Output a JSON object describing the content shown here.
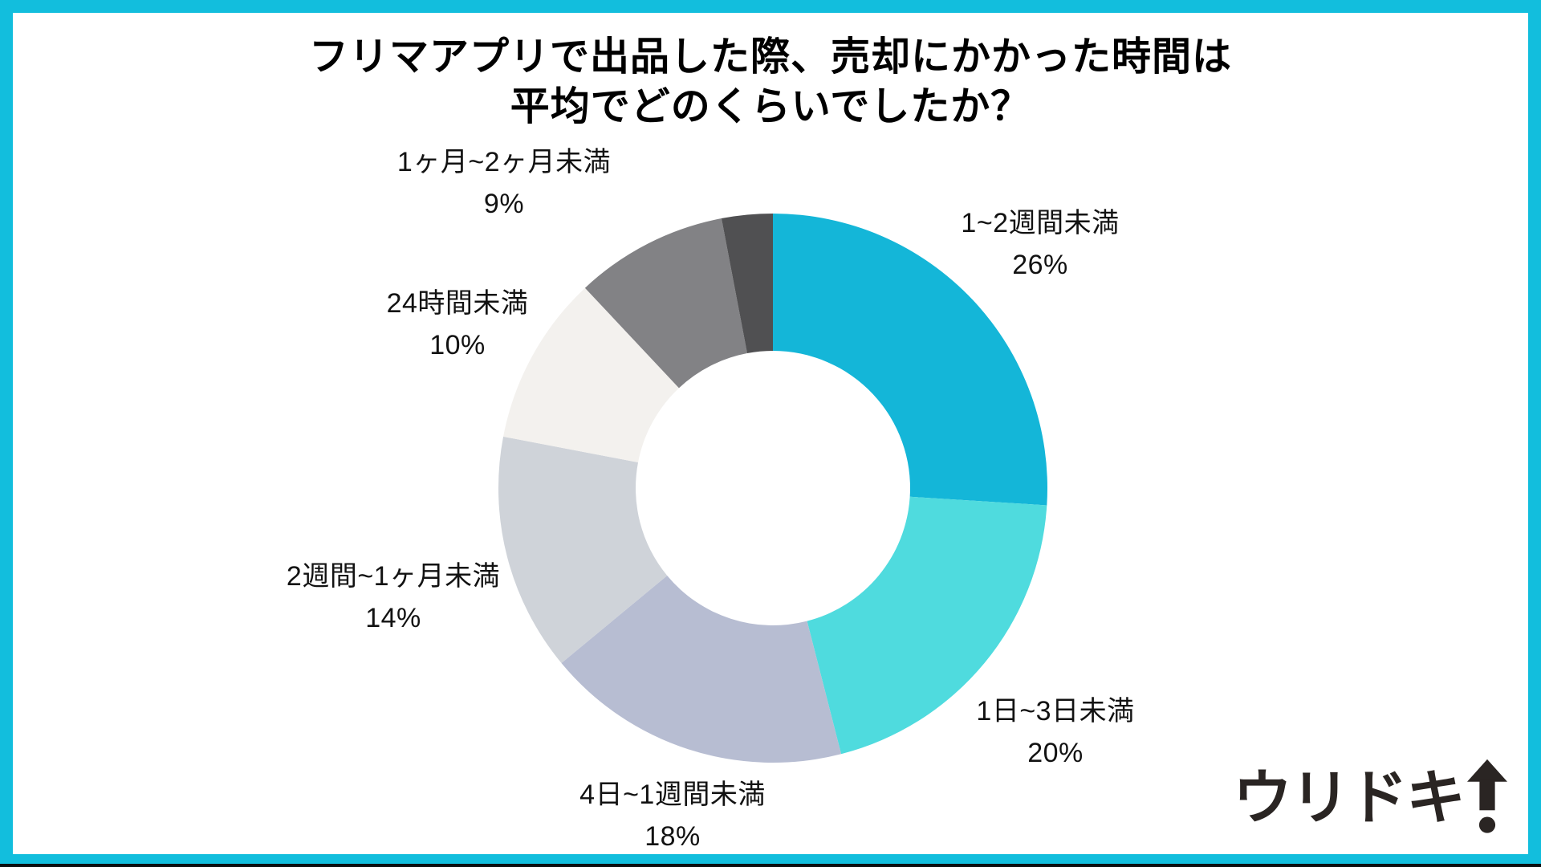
{
  "title": {
    "line1": "フリマアプリで出品した際、売却にかかった時間は",
    "line2": "平均でどのくらいでしたか？"
  },
  "chart_data": {
    "type": "pie",
    "donut": true,
    "title": "フリマアプリで出品した際、売却にかかった時間は平均でどのくらいでしたか？",
    "unit": "%",
    "rotation": "clockwise-from-12-oclock",
    "inner_radius_ratio": 0.5,
    "segments": [
      {
        "label": "1~2週間未満",
        "value": 26,
        "pct_text": "26%",
        "color": "#14b6d8"
      },
      {
        "label": "1日~3日未満",
        "value": 20,
        "pct_text": "20%",
        "color": "#4fdbde"
      },
      {
        "label": "4日~1週間未満",
        "value": 18,
        "pct_text": "18%",
        "color": "#b7bdd2"
      },
      {
        "label": "2週間~1ヶ月未満",
        "value": 14,
        "pct_text": "14%",
        "color": "#cfd3d9"
      },
      {
        "label": "24時間未満",
        "value": 10,
        "pct_text": "10%",
        "color": "#f3f1ee"
      },
      {
        "label": "1ヶ月~2ヶ月未満",
        "value": 9,
        "pct_text": "9%",
        "color": "#828285"
      },
      {
        "label": "",
        "value": 3,
        "pct_text": "",
        "color": "#505052"
      }
    ]
  },
  "frame": {
    "border_color": "#12bedd"
  },
  "logo": {
    "text": "ウリドキ",
    "color": "#2a2523"
  }
}
